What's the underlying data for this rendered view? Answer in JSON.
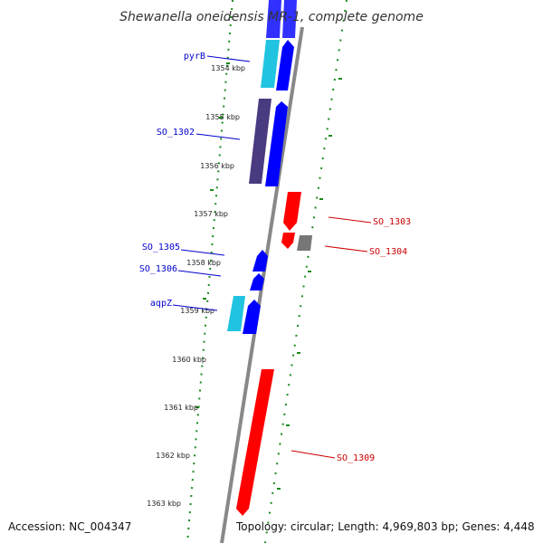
{
  "title": "Shewanella oneidensis MR-1, complete genome",
  "footer": {
    "accession": "Accession: NC_004347",
    "topology": "Topology: circular; Length: 4,969,803 bp; Genes: 4,448"
  },
  "ticks": [
    "1354 kbp",
    "1355 kbp",
    "1356 kbp",
    "1357 kbp",
    "1358 kbp",
    "1359 kbp",
    "1360 kbp",
    "1361 kbp",
    "1362 kbp",
    "1363 kbp"
  ],
  "gene_labels": {
    "pyrB": "pyrB",
    "so1302": "SO_1302",
    "so1305": "SO_1305",
    "so1306": "SO_1306",
    "aqpZ": "aqpZ",
    "so1303": "SO_1303",
    "so1304": "SO_1304",
    "so1309": "SO_1309"
  },
  "colors": {
    "forward_cds": "#0000ff",
    "reverse_cds": "#ff0000",
    "cyan_feature": "#20c4e0",
    "dark_feature": "#4a3a80",
    "gray_feature": "#777777",
    "backbone": "#888888",
    "gc_dots": "#1a8a1a"
  }
}
